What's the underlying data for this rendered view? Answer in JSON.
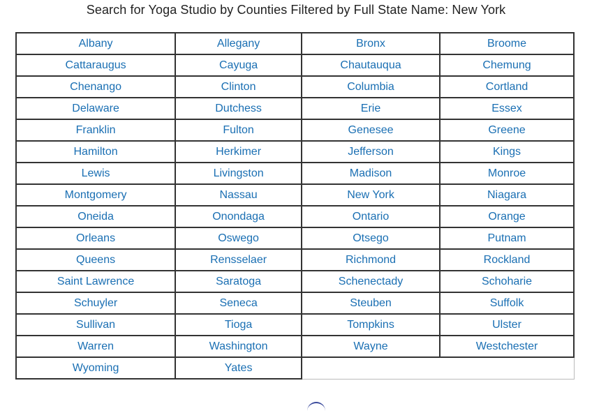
{
  "page": {
    "title": "Search for Yoga Studio by Counties Filtered by Full State Name: New York"
  },
  "colors": {
    "link": "#1a6fb3",
    "border": "#333333"
  },
  "counties": [
    "Albany",
    "Allegany",
    "Bronx",
    "Broome",
    "Cattaraugus",
    "Cayuga",
    "Chautauqua",
    "Chemung",
    "Chenango",
    "Clinton",
    "Columbia",
    "Cortland",
    "Delaware",
    "Dutchess",
    "Erie",
    "Essex",
    "Franklin",
    "Fulton",
    "Genesee",
    "Greene",
    "Hamilton",
    "Herkimer",
    "Jefferson",
    "Kings",
    "Lewis",
    "Livingston",
    "Madison",
    "Monroe",
    "Montgomery",
    "Nassau",
    "New York",
    "Niagara",
    "Oneida",
    "Onondaga",
    "Ontario",
    "Orange",
    "Orleans",
    "Oswego",
    "Otsego",
    "Putnam",
    "Queens",
    "Rensselaer",
    "Richmond",
    "Rockland",
    "Saint Lawrence",
    "Saratoga",
    "Schenectady",
    "Schoharie",
    "Schuyler",
    "Seneca",
    "Steuben",
    "Suffolk",
    "Sullivan",
    "Tioga",
    "Tompkins",
    "Ulster",
    "Warren",
    "Washington",
    "Wayne",
    "Westchester",
    "Wyoming",
    "Yates"
  ]
}
